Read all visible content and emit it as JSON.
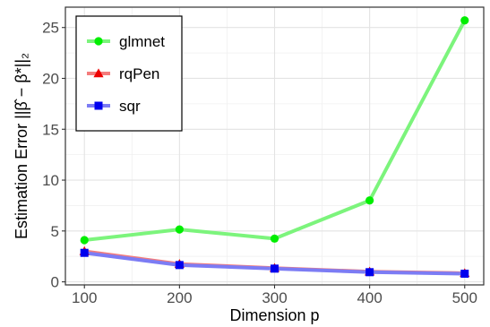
{
  "chart_data": {
    "type": "line",
    "x": [
      100,
      200,
      300,
      400,
      500
    ],
    "xlabel": "Dimension p",
    "ylabel": "Estimation Error ||β̂ − β*||₂",
    "xlim": [
      80,
      520
    ],
    "ylim": [
      -0.3,
      27
    ],
    "x_ticks": [
      100,
      200,
      300,
      400,
      500
    ],
    "y_ticks": [
      0,
      5,
      10,
      15,
      20,
      25
    ],
    "grid": true,
    "legend_position": "top-left",
    "series": [
      {
        "name": "glmnet",
        "values": [
          4.1,
          5.15,
          4.25,
          8.0,
          25.7
        ],
        "color": "#00ee00",
        "line_color": "#7cf47c",
        "marker": "circle"
      },
      {
        "name": "rqPen",
        "values": [
          3.0,
          1.75,
          1.35,
          1.0,
          0.85
        ],
        "color": "#ee0000",
        "line_color": "#f47c7c",
        "marker": "triangle"
      },
      {
        "name": "sqr",
        "values": [
          2.85,
          1.65,
          1.3,
          0.95,
          0.8
        ],
        "color": "#0000ee",
        "line_color": "#7c7cf4",
        "marker": "square"
      }
    ]
  }
}
